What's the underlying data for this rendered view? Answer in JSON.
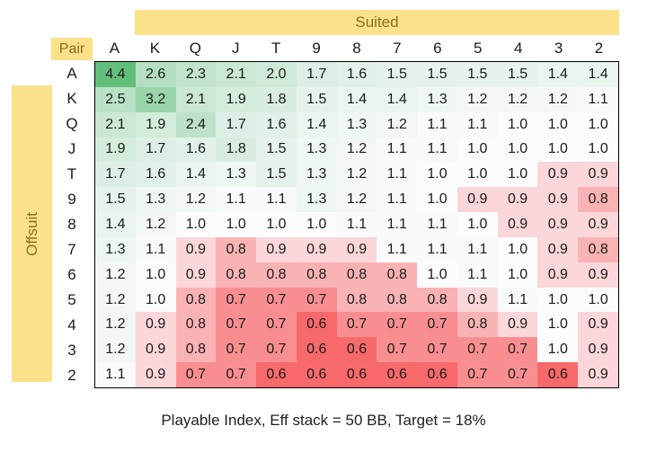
{
  "labels": {
    "suited": "Suited",
    "pair": "Pair",
    "offsuit": "Offsuit"
  },
  "caption": "Playable Index, Eff stack = 50 BB, Target = 18%",
  "colors": {
    "band_bg": "#FAE18A",
    "band_text": "#8C6E22",
    "grid_border": "#000000",
    "cell_text": "#1A1A1A",
    "scale_min_red": "#F8696B",
    "scale_mid_white": "#FCFCFF",
    "scale_max_green": "#63BE7B"
  },
  "chart_data": {
    "type": "heatmap",
    "title": "Playable Index, Eff stack = 50 BB, Target = 18%",
    "columns": [
      "A",
      "K",
      "Q",
      "J",
      "T",
      "9",
      "8",
      "7",
      "6",
      "5",
      "4",
      "3",
      "2"
    ],
    "rows": [
      "A",
      "K",
      "Q",
      "J",
      "T",
      "9",
      "8",
      "7",
      "6",
      "5",
      "4",
      "3",
      "2"
    ],
    "region_labels": {
      "above_diagonal": "Suited",
      "below_diagonal": "Offsuit",
      "diagonal": "Pair"
    },
    "values": [
      [
        4.4,
        2.6,
        2.3,
        2.1,
        2.0,
        1.7,
        1.6,
        1.5,
        1.5,
        1.5,
        1.5,
        1.4,
        1.4
      ],
      [
        2.5,
        3.2,
        2.1,
        1.9,
        1.8,
        1.5,
        1.4,
        1.4,
        1.3,
        1.2,
        1.2,
        1.2,
        1.1
      ],
      [
        2.1,
        1.9,
        2.4,
        1.7,
        1.6,
        1.4,
        1.3,
        1.2,
        1.1,
        1.1,
        1.0,
        1.0,
        1.0
      ],
      [
        1.9,
        1.7,
        1.6,
        1.8,
        1.5,
        1.3,
        1.2,
        1.1,
        1.1,
        1.0,
        1.0,
        1.0,
        1.0
      ],
      [
        1.7,
        1.6,
        1.4,
        1.3,
        1.5,
        1.3,
        1.2,
        1.1,
        1.0,
        1.0,
        1.0,
        0.9,
        0.9
      ],
      [
        1.5,
        1.3,
        1.2,
        1.1,
        1.1,
        1.3,
        1.2,
        1.1,
        1.0,
        0.9,
        0.9,
        0.9,
        0.8
      ],
      [
        1.4,
        1.2,
        1.0,
        1.0,
        1.0,
        1.0,
        1.1,
        1.1,
        1.1,
        1.0,
        0.9,
        0.9,
        0.9
      ],
      [
        1.3,
        1.1,
        0.9,
        0.8,
        0.9,
        0.9,
        0.9,
        1.1,
        1.1,
        1.1,
        1.0,
        0.9,
        0.8
      ],
      [
        1.2,
        1.0,
        0.9,
        0.8,
        0.8,
        0.8,
        0.8,
        0.8,
        1.0,
        1.1,
        1.0,
        0.9,
        0.9
      ],
      [
        1.2,
        1.0,
        0.8,
        0.7,
        0.7,
        0.7,
        0.8,
        0.8,
        0.8,
        0.9,
        1.1,
        1.0,
        1.0
      ],
      [
        1.2,
        0.9,
        0.8,
        0.7,
        0.7,
        0.6,
        0.7,
        0.7,
        0.7,
        0.8,
        0.9,
        1.0,
        0.9
      ],
      [
        1.2,
        0.9,
        0.8,
        0.7,
        0.7,
        0.6,
        0.6,
        0.7,
        0.7,
        0.7,
        0.7,
        1.0,
        0.9
      ],
      [
        1.1,
        0.9,
        0.7,
        0.7,
        0.6,
        0.6,
        0.6,
        0.6,
        0.6,
        0.7,
        0.7,
        0.6,
        0.9
      ]
    ],
    "value_format": "one_decimal",
    "color_scale": {
      "min_value": 0.6,
      "mid_value": 1.0,
      "max_value": 4.4,
      "min_color": "#F8696B",
      "mid_color": "#FCFCFF",
      "max_color": "#63BE7B"
    },
    "legend_position": "none",
    "grid": "outer-border-only"
  }
}
